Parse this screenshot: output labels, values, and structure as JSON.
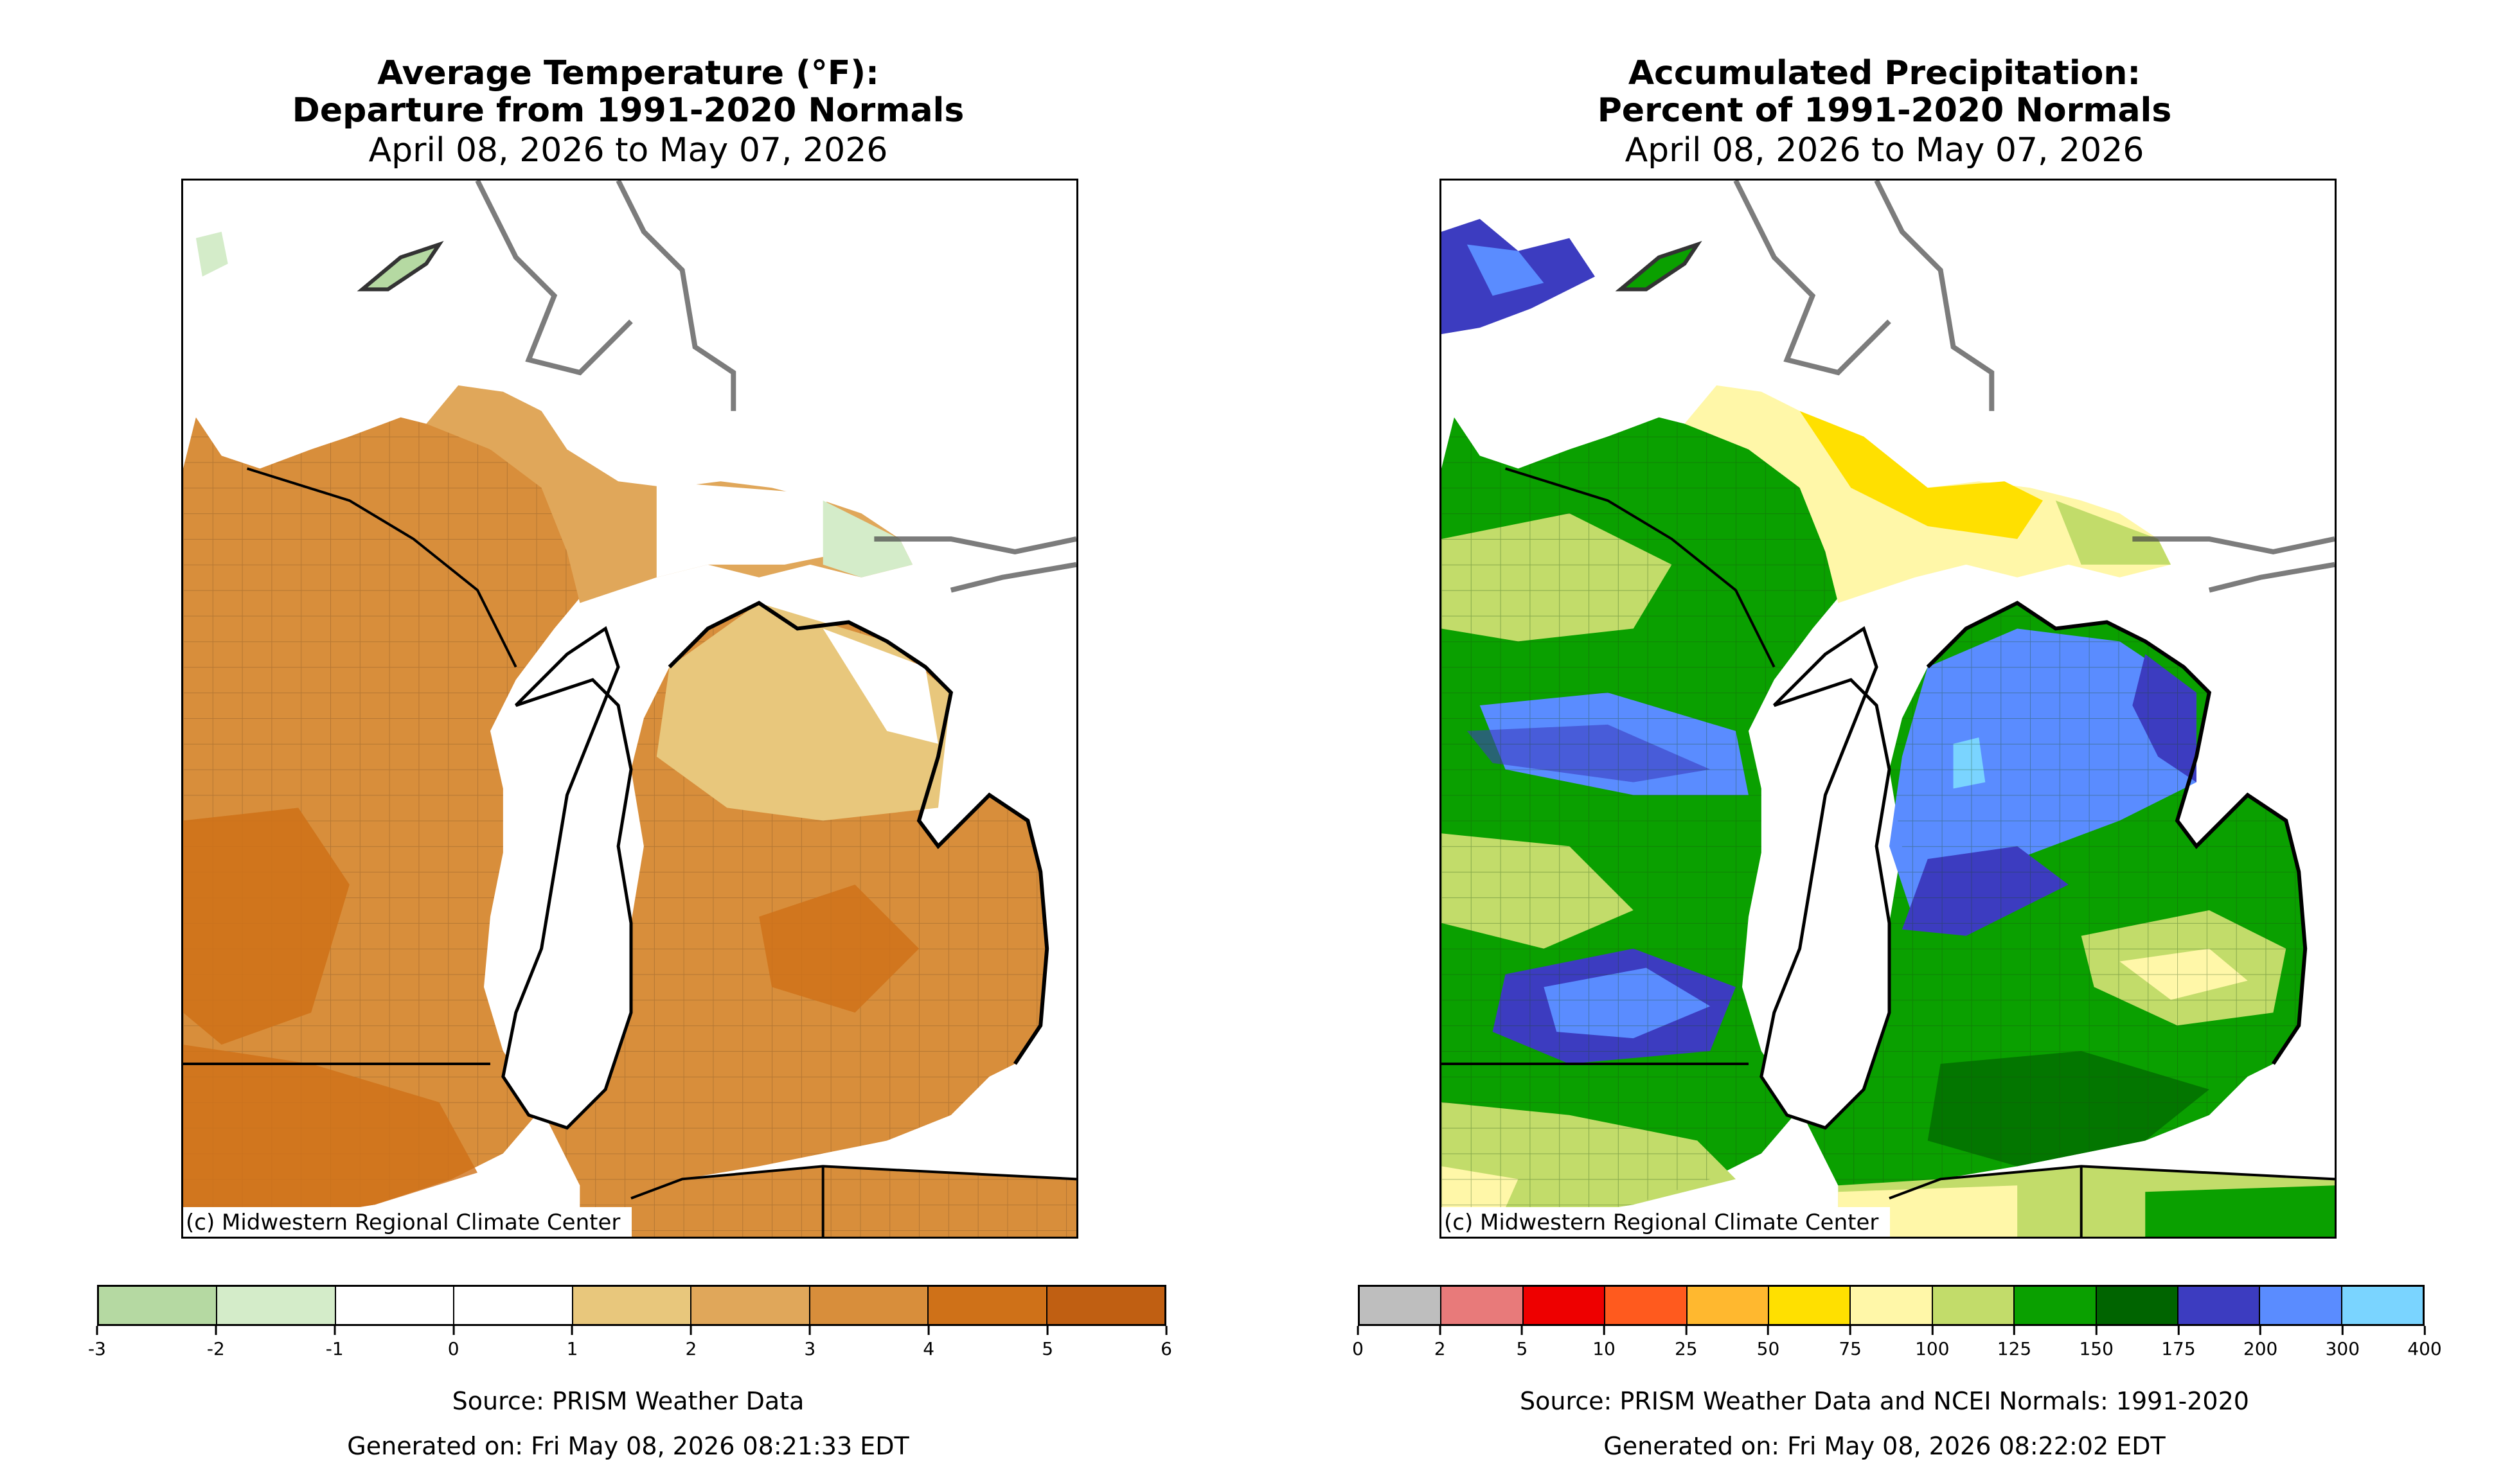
{
  "temperature_panel": {
    "title_line1": "Average Temperature (°F):",
    "title_line2": "Departure from 1991-2020 Normals",
    "date_range": "April 08, 2026 to May 07, 2026",
    "credit": "(c) Midwestern Regional Climate Center",
    "legend": {
      "ticks": [
        "-3",
        "-2",
        "-1",
        "0",
        "1",
        "2",
        "3",
        "4",
        "5",
        "6"
      ],
      "colors": [
        "#b5d9a2",
        "#d4ecc9",
        "#ffffff",
        "#ffffff",
        "#e8c77c",
        "#e0a75a",
        "#d88e3b",
        "#cf7118",
        "#c05f12"
      ]
    },
    "source": "Source: PRISM Weather Data",
    "generated": "Generated on: Fri May 08, 2026 08:21:33 EDT"
  },
  "precipitation_panel": {
    "title_line1": "Accumulated Precipitation:",
    "title_line2": "Percent of 1991-2020 Normals",
    "date_range": "April 08, 2026 to May 07, 2026",
    "credit": "(c) Midwestern Regional Climate Center",
    "legend": {
      "ticks": [
        "0",
        "2",
        "5",
        "10",
        "25",
        "50",
        "75",
        "100",
        "125",
        "150",
        "175",
        "200",
        "300",
        "400"
      ],
      "colors": [
        "#bebebe",
        "#e87a7a",
        "#ee0000",
        "#ff5a1e",
        "#ffb82f",
        "#ffe000",
        "#fff7a8",
        "#c2dc6a",
        "#0aa000",
        "#006400",
        "#3c3cc0",
        "#5a8cff",
        "#7ad4ff"
      ]
    },
    "source": "Source: PRISM Weather Data and NCEI Normals: 1991-2020",
    "generated": "Generated on: Fri May 08, 2026 08:22:02 EDT"
  }
}
